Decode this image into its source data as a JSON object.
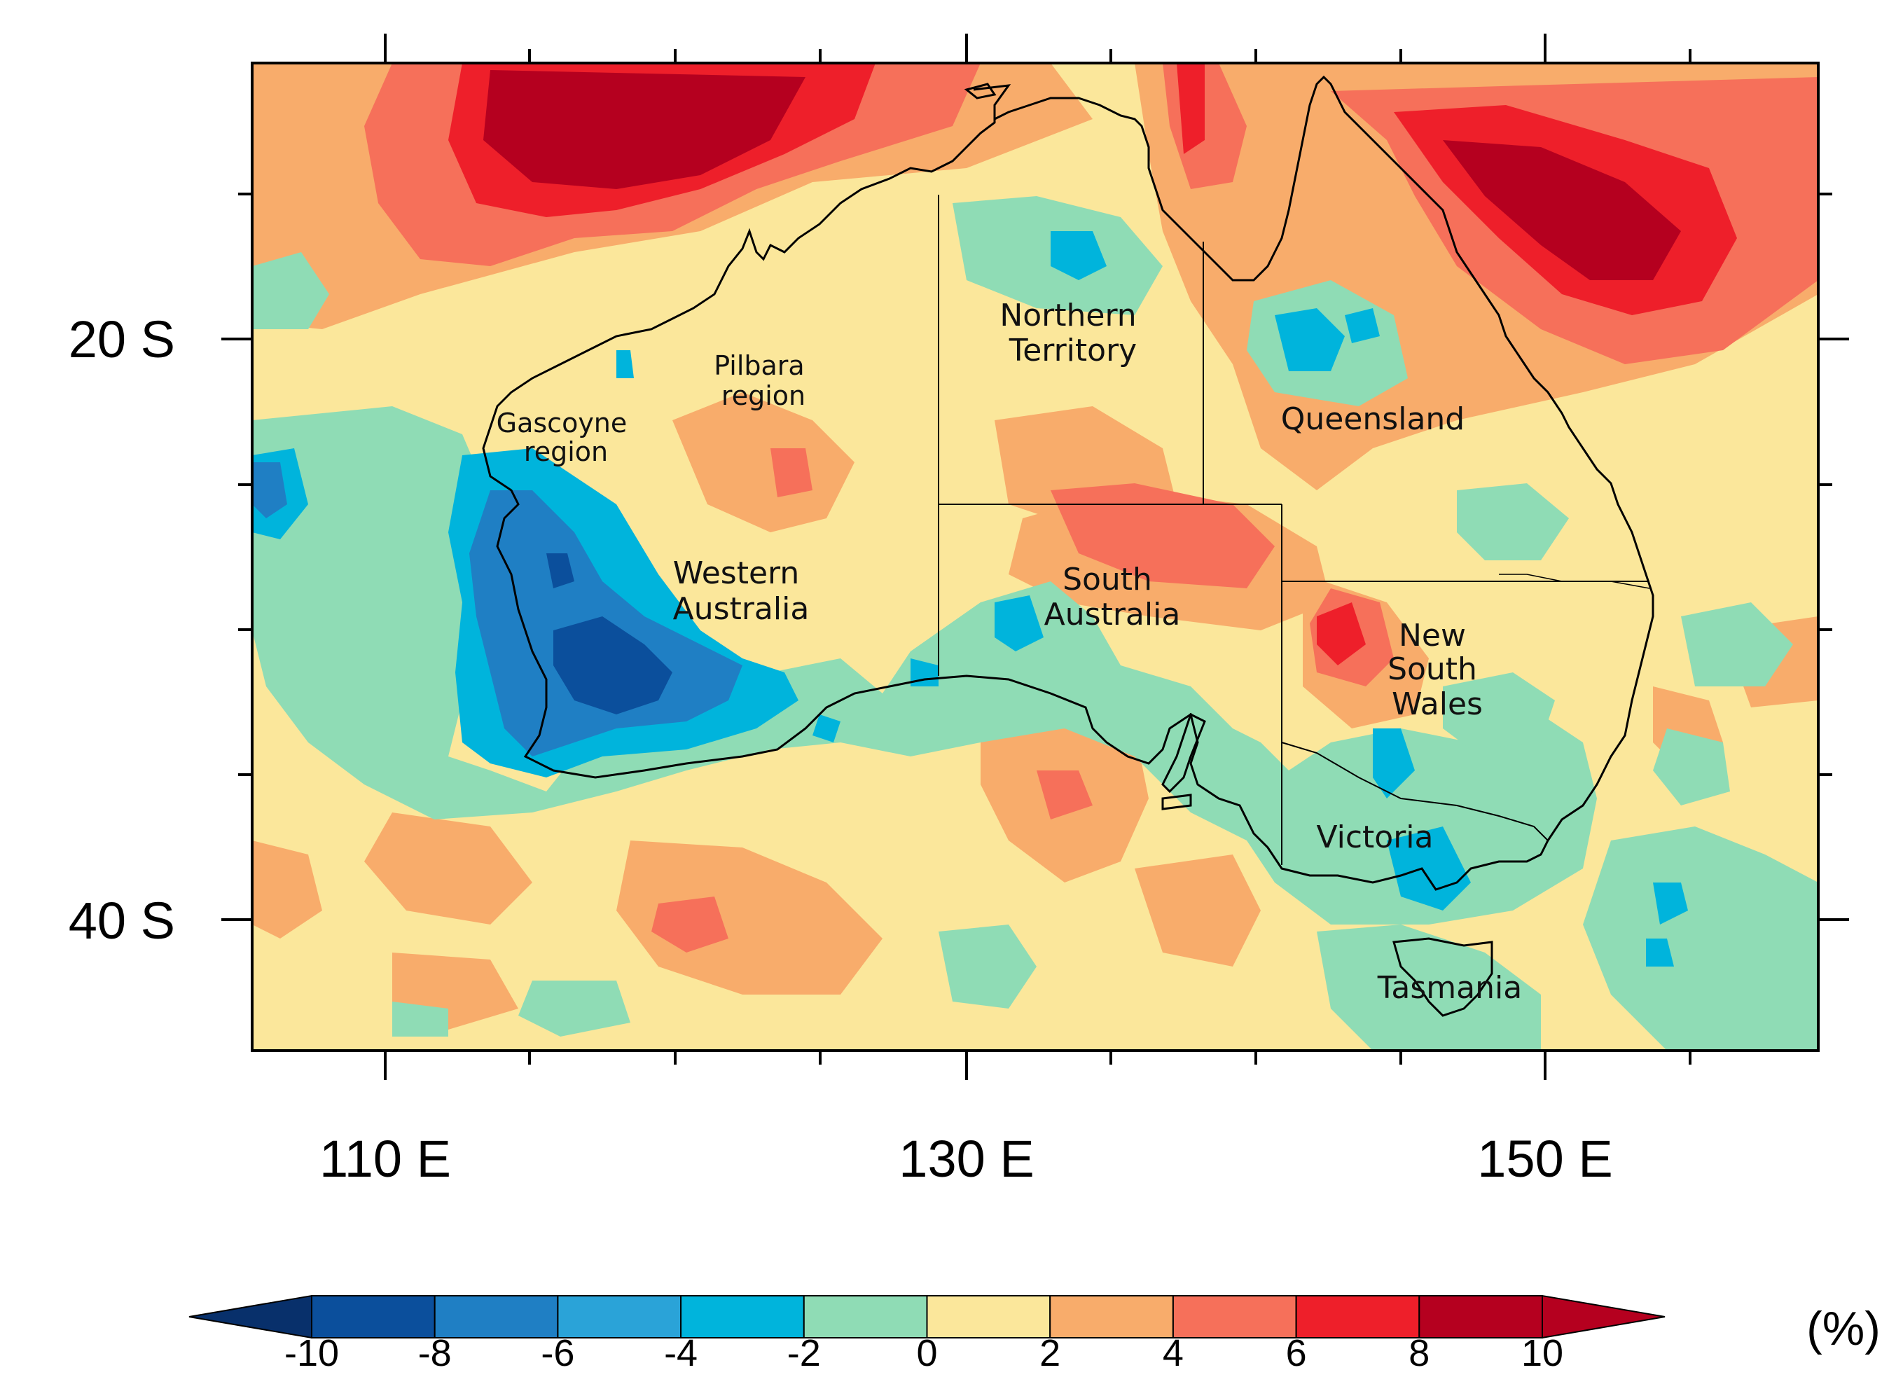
{
  "map": {
    "region": "Australia",
    "lon_labels": [
      "110 E",
      "130 E",
      "150 E"
    ],
    "lat_labels": [
      "20 S",
      "40 S"
    ],
    "lon_range": [
      105.5,
      159.5
    ],
    "lat_range": [
      -11,
      -45
    ],
    "regions": [
      {
        "name": "Pilbara",
        "lines": [
          "Pilbara",
          "region"
        ]
      },
      {
        "name": "Gascoyne",
        "lines": [
          "Gascoyne",
          "region"
        ]
      },
      {
        "name": "Western Australia",
        "lines": [
          "Western",
          "Australia"
        ]
      },
      {
        "name": "Northern Territory",
        "lines": [
          "Northern",
          "Territory"
        ]
      },
      {
        "name": "Queensland",
        "lines": [
          "Queensland"
        ]
      },
      {
        "name": "South Australia",
        "lines": [
          "South",
          "Australia"
        ]
      },
      {
        "name": "New South Wales",
        "lines": [
          "New",
          "South",
          "Wales"
        ]
      },
      {
        "name": "Victoria",
        "lines": [
          "Victoria"
        ]
      },
      {
        "name": "Tasmania",
        "lines": [
          "Tasmania"
        ]
      }
    ]
  },
  "colorbar": {
    "unit": "(%)",
    "levels": [
      "-10",
      "-8",
      "-6",
      "-4",
      "-2",
      "0",
      "2",
      "4",
      "6",
      "8",
      "10"
    ],
    "colors": [
      "#08306b",
      "#0b4f9c",
      "#1f7fc4",
      "#2aa3d8",
      "#00b4dc",
      "#8fdcb5",
      "#fbe79b",
      "#f8ac6b",
      "#f6705a",
      "#ee1f2a",
      "#b5001f"
    ]
  }
}
